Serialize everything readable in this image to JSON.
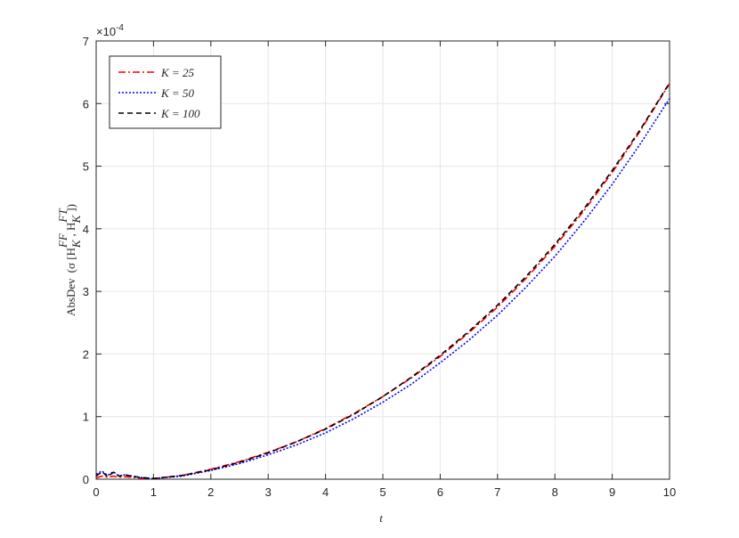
{
  "chart_data": {
    "type": "line",
    "y_multiplier": {
      "base": "×10",
      "exponent": "-4"
    },
    "xlabel": "t",
    "ylabel": [
      "AbsDev",
      "(σ [H",
      "FF",
      "K",
      ", H",
      "FT",
      "K",
      "])"
    ],
    "x": [
      0,
      0.1,
      0.2,
      0.3,
      0.4,
      0.5,
      0.75,
      1,
      1.5,
      2,
      2.5,
      3,
      3.5,
      4,
      4.5,
      5,
      5.5,
      6,
      6.5,
      7,
      7.5,
      8,
      8.5,
      9,
      9.5,
      10
    ],
    "series": [
      {
        "name": "K = 25",
        "color": "#ff0000",
        "dash": "dashdot",
        "values": [
          0.02,
          0.05,
          0.03,
          0.05,
          0.03,
          0.04,
          0.02,
          0.01,
          0.06,
          0.16,
          0.28,
          0.43,
          0.6,
          0.81,
          1.05,
          1.32,
          1.62,
          1.96,
          2.34,
          2.75,
          3.21,
          3.72,
          4.28,
          4.9,
          5.58,
          6.32
        ]
      },
      {
        "name": "K = 50",
        "color": "#0000ff",
        "dash": "dotted",
        "values": [
          0.08,
          0.13,
          0.06,
          0.12,
          0.05,
          0.07,
          0.03,
          0.01,
          0.05,
          0.14,
          0.25,
          0.39,
          0.55,
          0.74,
          0.97,
          1.23,
          1.52,
          1.86,
          2.22,
          2.62,
          3.07,
          3.56,
          4.11,
          4.71,
          5.37,
          6.08
        ]
      },
      {
        "name": "K = 100",
        "color": "#000000",
        "dash": "dashed",
        "values": [
          0.05,
          0.12,
          0.04,
          0.11,
          0.05,
          0.07,
          0.03,
          0.01,
          0.06,
          0.15,
          0.27,
          0.42,
          0.6,
          0.8,
          1.04,
          1.32,
          1.63,
          1.98,
          2.36,
          2.78,
          3.24,
          3.75,
          4.31,
          4.93,
          5.6,
          6.33
        ]
      }
    ],
    "xlim": [
      0,
      10
    ],
    "xticks": [
      0,
      1,
      2,
      3,
      4,
      5,
      6,
      7,
      8,
      9,
      10
    ],
    "ylim": [
      0,
      7
    ],
    "yticks": [
      0,
      1,
      2,
      3,
      4,
      5,
      6,
      7
    ],
    "grid": true,
    "legend": "top-left"
  }
}
